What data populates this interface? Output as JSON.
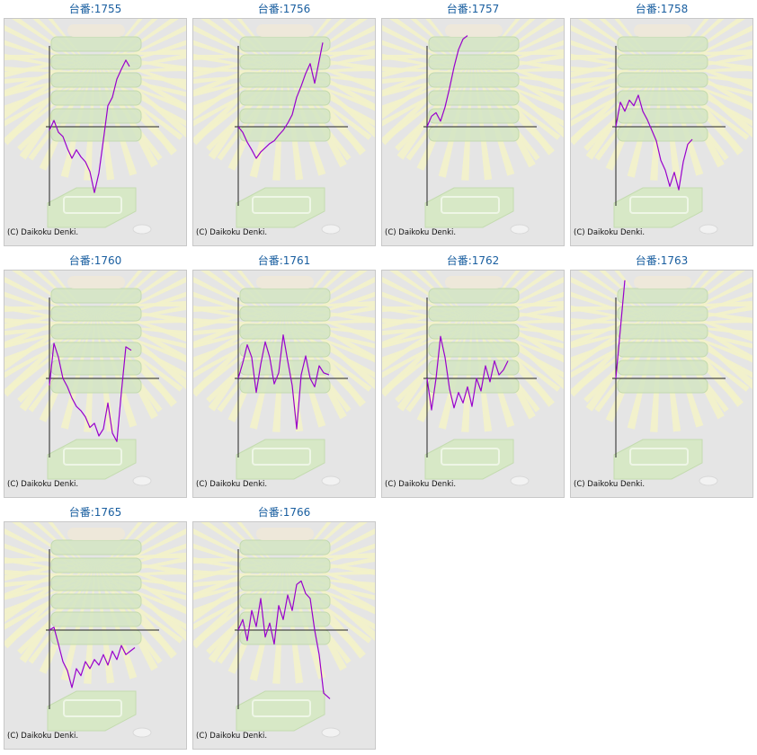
{
  "chart_data": [
    {
      "type": "line",
      "title": "台番:1755",
      "copyright": "(C) Daikoku Denki.",
      "color": "#9900cc",
      "x": [
        0,
        5,
        10,
        15,
        20,
        25,
        30,
        35,
        40,
        45,
        50,
        55,
        60,
        65,
        70,
        75,
        80,
        85,
        89
      ],
      "y": [
        -0.05,
        0.09,
        -0.08,
        -0.14,
        -0.31,
        -0.45,
        -0.33,
        -0.43,
        -0.5,
        -0.64,
        -0.94,
        -0.66,
        -0.19,
        0.3,
        0.42,
        0.68,
        0.82,
        0.95,
        0.86
      ]
    },
    {
      "type": "line",
      "title": "台番:1756",
      "copyright": "(C) Daikoku Denki.",
      "color": "#9900cc",
      "x": [
        0,
        5,
        10,
        15,
        20,
        25,
        30,
        35,
        40,
        45,
        50,
        55,
        60,
        65,
        70,
        75,
        80,
        85,
        94
      ],
      "y": [
        0.0,
        -0.08,
        -0.22,
        -0.33,
        -0.45,
        -0.36,
        -0.3,
        -0.24,
        -0.2,
        -0.12,
        -0.05,
        0.05,
        0.17,
        0.42,
        0.58,
        0.76,
        0.9,
        0.62,
        1.2
      ]
    },
    {
      "type": "line",
      "title": "台番:1757",
      "copyright": "(C) Daikoku Denki.",
      "color": "#9900cc",
      "x": [
        0,
        5,
        10,
        15,
        20,
        25,
        30,
        35,
        40,
        45
      ],
      "y": [
        0.0,
        0.15,
        0.2,
        0.08,
        0.28,
        0.55,
        0.85,
        1.1,
        1.25,
        1.3
      ]
    },
    {
      "type": "line",
      "title": "台番:1758",
      "copyright": "(C) Daikoku Denki.",
      "color": "#9900cc",
      "x": [
        0,
        5,
        10,
        15,
        20,
        25,
        30,
        35,
        40,
        45,
        50,
        55,
        60,
        65,
        70,
        75,
        80,
        85
      ],
      "y": [
        0.0,
        0.35,
        0.22,
        0.38,
        0.3,
        0.45,
        0.22,
        0.1,
        -0.05,
        -0.2,
        -0.48,
        -0.62,
        -0.85,
        -0.65,
        -0.9,
        -0.5,
        -0.25,
        -0.18
      ]
    },
    {
      "type": "line",
      "title": "台番:1760",
      "copyright": "(C) Daikoku Denki.",
      "color": "#9900cc",
      "x": [
        0,
        5,
        10,
        15,
        20,
        25,
        30,
        35,
        40,
        45,
        50,
        55,
        60,
        65,
        70,
        75,
        80,
        85,
        91
      ],
      "y": [
        -0.1,
        0.5,
        0.3,
        0.0,
        -0.12,
        -0.28,
        -0.4,
        -0.46,
        -0.55,
        -0.7,
        -0.64,
        -0.82,
        -0.72,
        -0.35,
        -0.78,
        -0.9,
        -0.2,
        0.45,
        0.4
      ]
    },
    {
      "type": "line",
      "title": "台番:1761",
      "copyright": "(C) Daikoku Denki.",
      "color": "#9900cc",
      "x": [
        0,
        5,
        10,
        15,
        20,
        25,
        30,
        35,
        40,
        45,
        50,
        55,
        60,
        65,
        70,
        75,
        80,
        85,
        90,
        95,
        101
      ],
      "y": [
        0.0,
        0.22,
        0.48,
        0.3,
        -0.2,
        0.2,
        0.52,
        0.3,
        -0.08,
        0.08,
        0.62,
        0.25,
        -0.1,
        -0.72,
        0.05,
        0.32,
        0.0,
        -0.12,
        0.18,
        0.08,
        0.05
      ]
    },
    {
      "type": "line",
      "title": "台番:1762",
      "copyright": "(C) Daikoku Denki.",
      "color": "#9900cc",
      "x": [
        0,
        5,
        10,
        15,
        20,
        25,
        30,
        35,
        40,
        45,
        50,
        55,
        60,
        65,
        70,
        75,
        80,
        85,
        90
      ],
      "y": [
        0.0,
        -0.45,
        0.0,
        0.6,
        0.3,
        -0.15,
        -0.42,
        -0.2,
        -0.35,
        -0.12,
        -0.4,
        0.0,
        -0.18,
        0.18,
        -0.05,
        0.25,
        0.05,
        0.12,
        0.25
      ]
    },
    {
      "type": "line",
      "title": "台番:1763",
      "copyright": "(C) Daikoku Denki.",
      "color": "#9900cc",
      "x": [
        0,
        5,
        10
      ],
      "y": [
        0.0,
        0.7,
        1.4
      ]
    },
    {
      "type": "line",
      "title": "台番:1765",
      "copyright": "(C) Daikoku Denki.",
      "color": "#9900cc",
      "x": [
        0,
        5,
        10,
        15,
        20,
        25,
        30,
        35,
        40,
        45,
        50,
        55,
        60,
        65,
        70,
        75,
        80,
        85,
        90,
        95
      ],
      "y": [
        0.0,
        0.04,
        -0.2,
        -0.45,
        -0.58,
        -0.82,
        -0.55,
        -0.65,
        -0.45,
        -0.55,
        -0.42,
        -0.5,
        -0.35,
        -0.5,
        -0.3,
        -0.42,
        -0.22,
        -0.35,
        -0.3,
        -0.25
      ]
    },
    {
      "type": "line",
      "title": "台番:1766",
      "copyright": "(C) Daikoku Denki.",
      "color": "#9900cc",
      "x": [
        0,
        5,
        10,
        15,
        20,
        25,
        30,
        35,
        40,
        45,
        50,
        55,
        60,
        65,
        70,
        75,
        80,
        85,
        90,
        95,
        102
      ],
      "y": [
        0.0,
        0.15,
        -0.15,
        0.28,
        0.05,
        0.45,
        -0.1,
        0.1,
        -0.2,
        0.35,
        0.15,
        0.5,
        0.28,
        0.65,
        0.7,
        0.52,
        0.45,
        0.0,
        -0.35,
        -0.9,
        -0.98
      ]
    }
  ],
  "page": {
    "icons": [
      "slot-reel-banner-background",
      "coin-tray-background",
      "coin-icon"
    ]
  }
}
